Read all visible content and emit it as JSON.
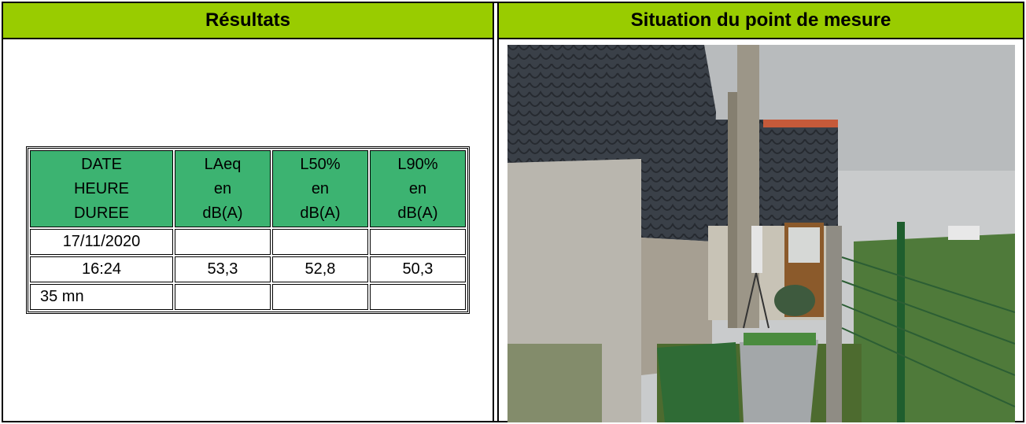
{
  "results_title": "Résultats",
  "photo_title": "Situation du point de mesure",
  "table": {
    "headers": [
      [
        "DATE",
        "HEURE",
        "DUREE"
      ],
      [
        "LAeq",
        "en",
        "dB(A)"
      ],
      [
        "L50%",
        "en",
        "dB(A)"
      ],
      [
        "L90%",
        "en",
        "dB(A)"
      ]
    ],
    "first_column": [
      "17/11/2020",
      "16:24",
      "35 mn"
    ],
    "values": [
      "53,3",
      "52,8",
      "50,3"
    ]
  }
}
